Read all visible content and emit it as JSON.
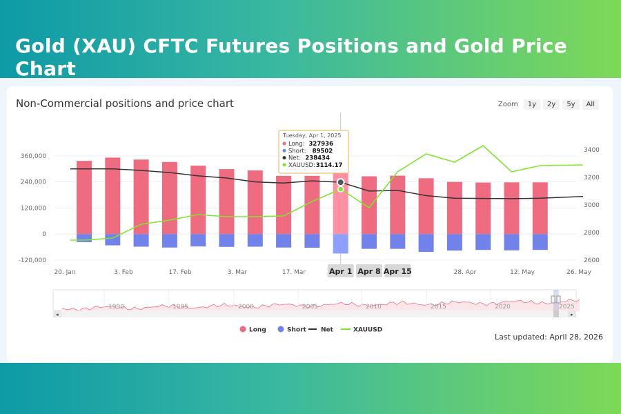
{
  "page": {
    "banner_title": "Gold (XAU) CFTC Futures Positions and Gold Price Chart",
    "chart_title": "Non-Commercial positions and price chart",
    "zoom_label": "Zoom",
    "zoom_buttons": [
      "1y",
      "2y",
      "5y",
      "All"
    ],
    "last_updated": "Last updated: April 28, 2026"
  },
  "colors": {
    "long": "#ee6b80",
    "short": "#7183ea",
    "net": "#333333",
    "xauusd": "#7fe52e",
    "long_highlight": "#ff8fa3",
    "short_highlight": "#8ea0ff"
  },
  "chart_data": {
    "type": "bar",
    "title": "Non-Commercial positions and price chart",
    "x_tick_labels": [
      "20. Jan",
      "3. Feb",
      "17. Feb",
      "3. Mar",
      "17. Mar",
      "28. Apr",
      "12. May",
      "26. May"
    ],
    "highlighted_x_labels": [
      "Apr 1",
      "Apr 8",
      "Apr 15"
    ],
    "y_left_ticks": [
      "-120,000",
      "0",
      "120,000",
      "240,000",
      "360,000"
    ],
    "y_left_range": [
      -120000,
      420000
    ],
    "y_right_ticks": [
      "2600",
      "2800",
      "3000",
      "3200",
      "3400"
    ],
    "y_right_range": [
      2600,
      3450
    ],
    "legend": [
      "Long",
      "Short",
      "Net",
      "XAUUSD"
    ],
    "legend_position": "bottom",
    "series": [
      {
        "name": "Long",
        "kind": "bar",
        "values": [
          337000,
          352000,
          343000,
          332000,
          315000,
          299000,
          293000,
          268000,
          268000,
          327936,
          266000,
          269000,
          257000,
          240000,
          237000,
          238000,
          238000
        ]
      },
      {
        "name": "Short",
        "kind": "bar",
        "values": [
          -37000,
          -52000,
          -58000,
          -62000,
          -57000,
          -59000,
          -58000,
          -62000,
          -63000,
          -89502,
          -68000,
          -68000,
          -82000,
          -76000,
          -73000,
          -75000,
          -73000
        ]
      },
      {
        "name": "Net",
        "kind": "line",
        "values": [
          300000,
          300000,
          293000,
          283000,
          268000,
          258000,
          240000,
          235000,
          245000,
          238434,
          198000,
          201000,
          177000,
          165000,
          164000,
          163000,
          165000
        ],
        "extra_end": 173000
      },
      {
        "name": "XAUUSD",
        "kind": "line",
        "axis": "right",
        "values": [
          2745,
          2760,
          2860,
          2890,
          2930,
          2915,
          2915,
          2920,
          3025,
          3114.17,
          2980,
          3240,
          3370,
          3310,
          3430,
          3240,
          3285
        ],
        "extra_end": 3290
      }
    ],
    "tooltip": {
      "date": "Tuesday, Apr 1, 2025",
      "rows": [
        {
          "label": "Long:",
          "value": "327936"
        },
        {
          "label": "Short:",
          "value": "89502"
        },
        {
          "label": "Net:",
          "value": "238434"
        },
        {
          "label": "XAUUSD:",
          "value": "3114.17"
        }
      ]
    },
    "navigator": {
      "year_labels": [
        "1990",
        "1995",
        "2000",
        "2005",
        "2010",
        "2015",
        "2020",
        "2025"
      ]
    }
  }
}
